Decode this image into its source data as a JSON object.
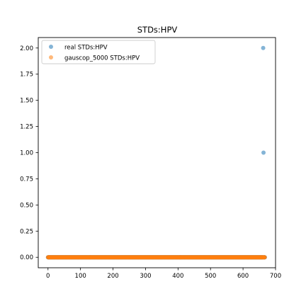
{
  "chart_data": {
    "type": "scatter",
    "title": "STDs:HPV",
    "xlabel": "",
    "ylabel": "",
    "xlim": [
      -30,
      700
    ],
    "ylim": [
      -0.1,
      2.1
    ],
    "xticks": [
      0,
      100,
      200,
      300,
      400,
      500,
      600,
      700
    ],
    "yticks": [
      0.0,
      0.25,
      0.5,
      0.75,
      1.0,
      1.25,
      1.5,
      1.75,
      2.0
    ],
    "xtick_labels": [
      "0",
      "100",
      "200",
      "300",
      "400",
      "500",
      "600",
      "700"
    ],
    "ytick_labels": [
      "0.00",
      "0.25",
      "0.50",
      "0.75",
      "1.00",
      "1.25",
      "1.50",
      "1.75",
      "2.00"
    ],
    "grid": false,
    "legend_position": "top-left",
    "series": [
      {
        "name": "real STDs:HPV",
        "color": "#1f77b4",
        "n_points": 668,
        "x_range": [
          0,
          667
        ],
        "baseline_y": 0,
        "special_points": [
          {
            "x": 662,
            "y": 2
          },
          {
            "x": 663,
            "y": 1
          }
        ]
      },
      {
        "name": "gauscop_5000 STDs:HPV",
        "color": "#ff7f0e",
        "n_points": 668,
        "x_range": [
          0,
          667
        ],
        "baseline_y": 0,
        "special_points": []
      }
    ]
  }
}
